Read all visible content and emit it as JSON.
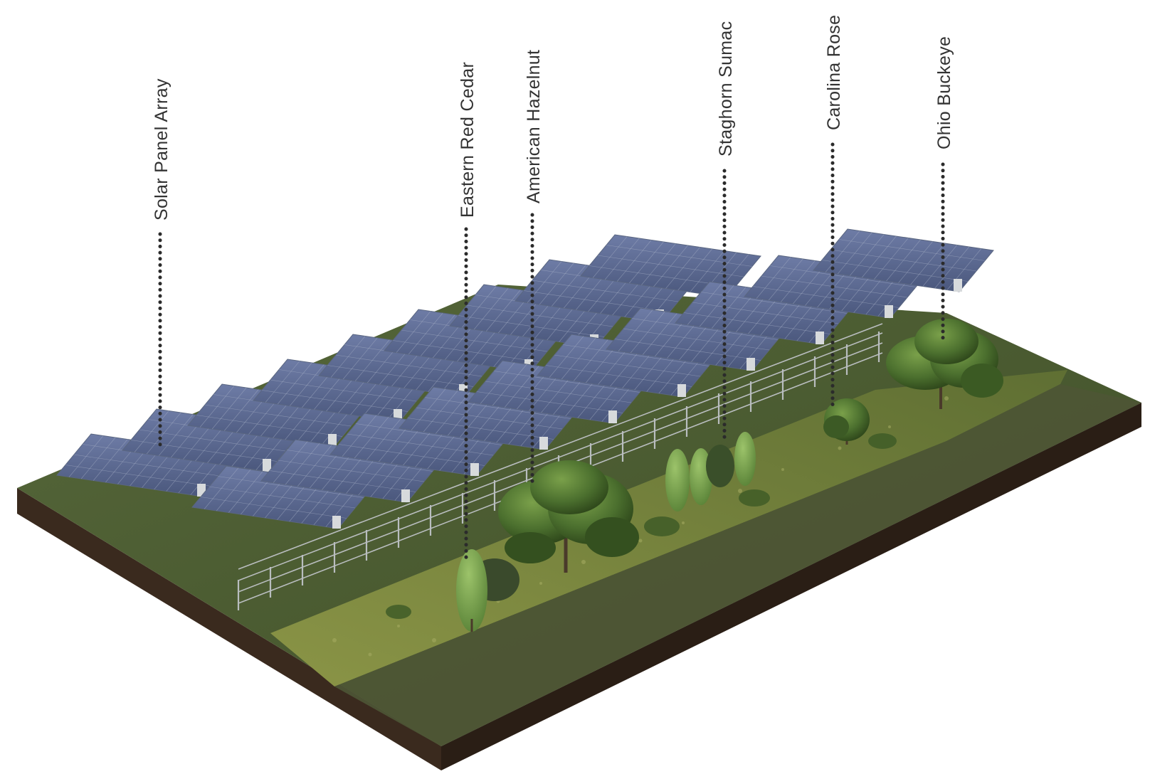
{
  "diagram": {
    "labels": [
      {
        "id": "solar-panel-array",
        "text": "Solar Panel Array"
      },
      {
        "id": "eastern-red-cedar",
        "text": "Eastern Red Cedar"
      },
      {
        "id": "american-hazelnut",
        "text": "American Hazelnut"
      },
      {
        "id": "staghorn-sumac",
        "text": "Staghorn Sumac"
      },
      {
        "id": "carolina-rose",
        "text": "Carolina Rose"
      },
      {
        "id": "ohio-buckeye",
        "text": "Ohio Buckeye"
      }
    ]
  },
  "colors": {
    "ground_top": "#4a5a2e",
    "ground_side_front": "#3a2a1e",
    "ground_side_right": "#2e2118",
    "meadow": "#6f7d3a",
    "path": "#545a3a",
    "panel": "#4f5d84",
    "panel_light": "#6b7aa3",
    "fence": "#b9bdbf",
    "tree_dark": "#2f4a1f",
    "tree_mid": "#476b2c",
    "tree_light": "#6a8f3f",
    "label_text": "#333333",
    "leader": "#2b2b2b"
  }
}
